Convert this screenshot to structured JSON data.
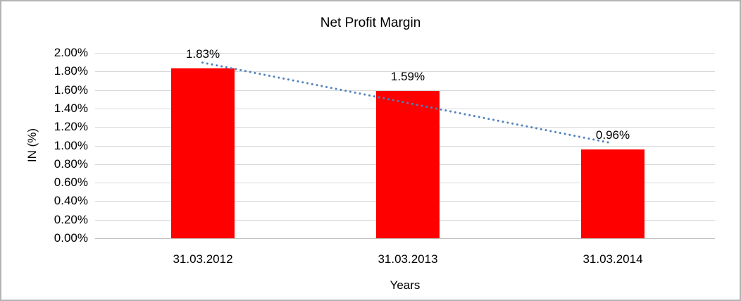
{
  "window": {
    "background": "#ffffff",
    "border_color": "#b3b3b3"
  },
  "chart_data": {
    "type": "bar",
    "title": "Net Profit Margin",
    "xlabel": "Years",
    "ylabel": "IN (%)",
    "categories": [
      "31.03.2012",
      "31.03.2013",
      "31.03.2014"
    ],
    "values": [
      1.83,
      1.59,
      0.96
    ],
    "data_labels": [
      "1.83%",
      "1.59%",
      "0.96%"
    ],
    "y_ticks": [
      0,
      0.2,
      0.4,
      0.6,
      0.8,
      1.0,
      1.2,
      1.4,
      1.6,
      1.8,
      2.0
    ],
    "y_tick_labels": [
      "0.00%",
      "0.20%",
      "0.40%",
      "0.60%",
      "0.80%",
      "1.00%",
      "1.20%",
      "1.40%",
      "1.60%",
      "1.80%",
      "2.00%"
    ],
    "ylim": [
      0,
      2
    ],
    "grid": true,
    "legend": "none",
    "bar_color": "#ff0000",
    "gridline_color": "#d9d9d9",
    "axis_line_color": "#bfbfbf",
    "text_color": "#000000",
    "trendline": {
      "type": "linear",
      "style": "dotted",
      "color": "#4f81bd"
    }
  }
}
